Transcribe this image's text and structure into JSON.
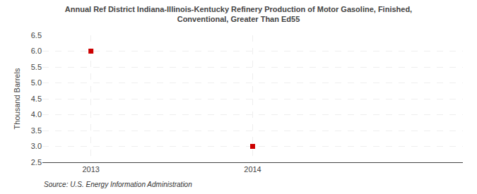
{
  "chart_data": {
    "type": "scatter",
    "title": "Annual Ref District Indiana-Illinois-Kentucky Refinery Production of Motor Gasoline, Finished,\nConventional, Greater Than Ed55",
    "ylabel": "Thousand Barrels",
    "annotations": [
      "Source: U.S. Energy Information Administration"
    ],
    "x": [
      2013,
      2014
    ],
    "values": [
      6.0,
      3.0
    ],
    "color": "#cc0000",
    "marker": "square",
    "xlim": [
      2012.7,
      2015.3
    ],
    "xticks": [
      2013,
      2014
    ],
    "ylim": [
      2.5,
      6.5
    ],
    "yticks": [
      2.5,
      {
        "value": 3.0,
        "label": "3.0"
      },
      3.5,
      {
        "value": 4.0,
        "label": "4.0"
      },
      4.5,
      {
        "value": 5.0,
        "label": "5.0"
      },
      5.5,
      {
        "value": 6.0,
        "label": "6.0"
      },
      6.5
    ],
    "grid": true
  }
}
